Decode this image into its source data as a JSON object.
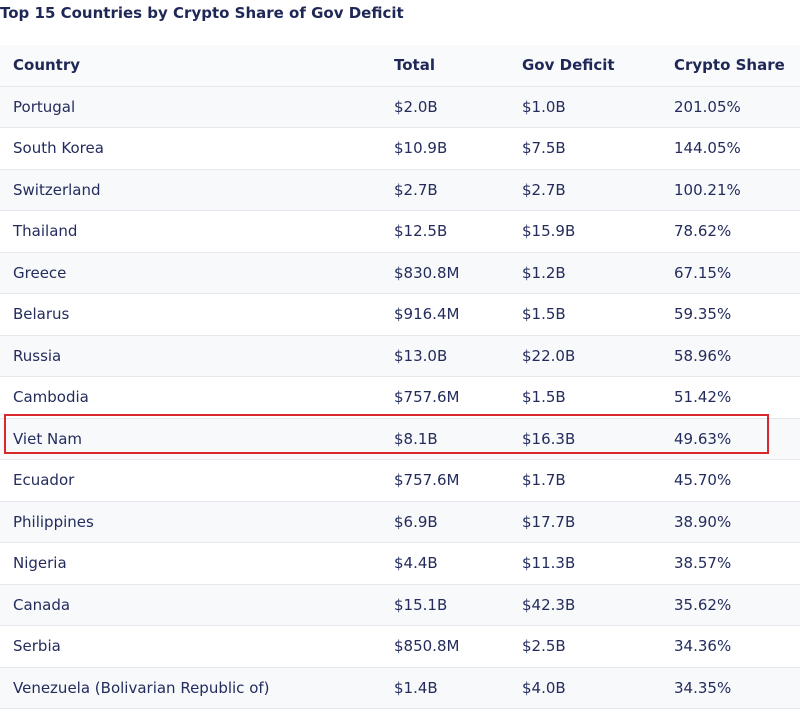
{
  "header": {
    "title": "Top 15 Countries by Crypto Share of Gov Deficit"
  },
  "table": {
    "columns": [
      "Country",
      "Total",
      "Gov Deficit",
      "Crypto Share"
    ],
    "rows": [
      [
        "Portugal",
        "$2.0B",
        "$1.0B",
        "201.05%"
      ],
      [
        "South Korea",
        "$10.9B",
        "$7.5B",
        "144.05%"
      ],
      [
        "Switzerland",
        "$2.7B",
        "$2.7B",
        "100.21%"
      ],
      [
        "Thailand",
        "$12.5B",
        "$15.9B",
        "78.62%"
      ],
      [
        "Greece",
        "$830.8M",
        "$1.2B",
        "67.15%"
      ],
      [
        "Belarus",
        "$916.4M",
        "$1.5B",
        "59.35%"
      ],
      [
        "Russia",
        "$13.0B",
        "$22.0B",
        "58.96%"
      ],
      [
        "Cambodia",
        "$757.6M",
        "$1.5B",
        "51.42%"
      ],
      [
        "Viet Nam",
        "$8.1B",
        "$16.3B",
        "49.63%"
      ],
      [
        "Ecuador",
        "$757.6M",
        "$1.7B",
        "45.70%"
      ],
      [
        "Philippines",
        "$6.9B",
        "$17.7B",
        "38.90%"
      ],
      [
        "Nigeria",
        "$4.4B",
        "$11.3B",
        "38.57%"
      ],
      [
        "Canada",
        "$15.1B",
        "$42.3B",
        "35.62%"
      ],
      [
        "Serbia",
        "$850.8M",
        "$2.5B",
        "34.36%"
      ],
      [
        "Venezuela (Bolivarian Republic of)",
        "$1.4B",
        "$4.0B",
        "34.35%"
      ]
    ]
  }
}
